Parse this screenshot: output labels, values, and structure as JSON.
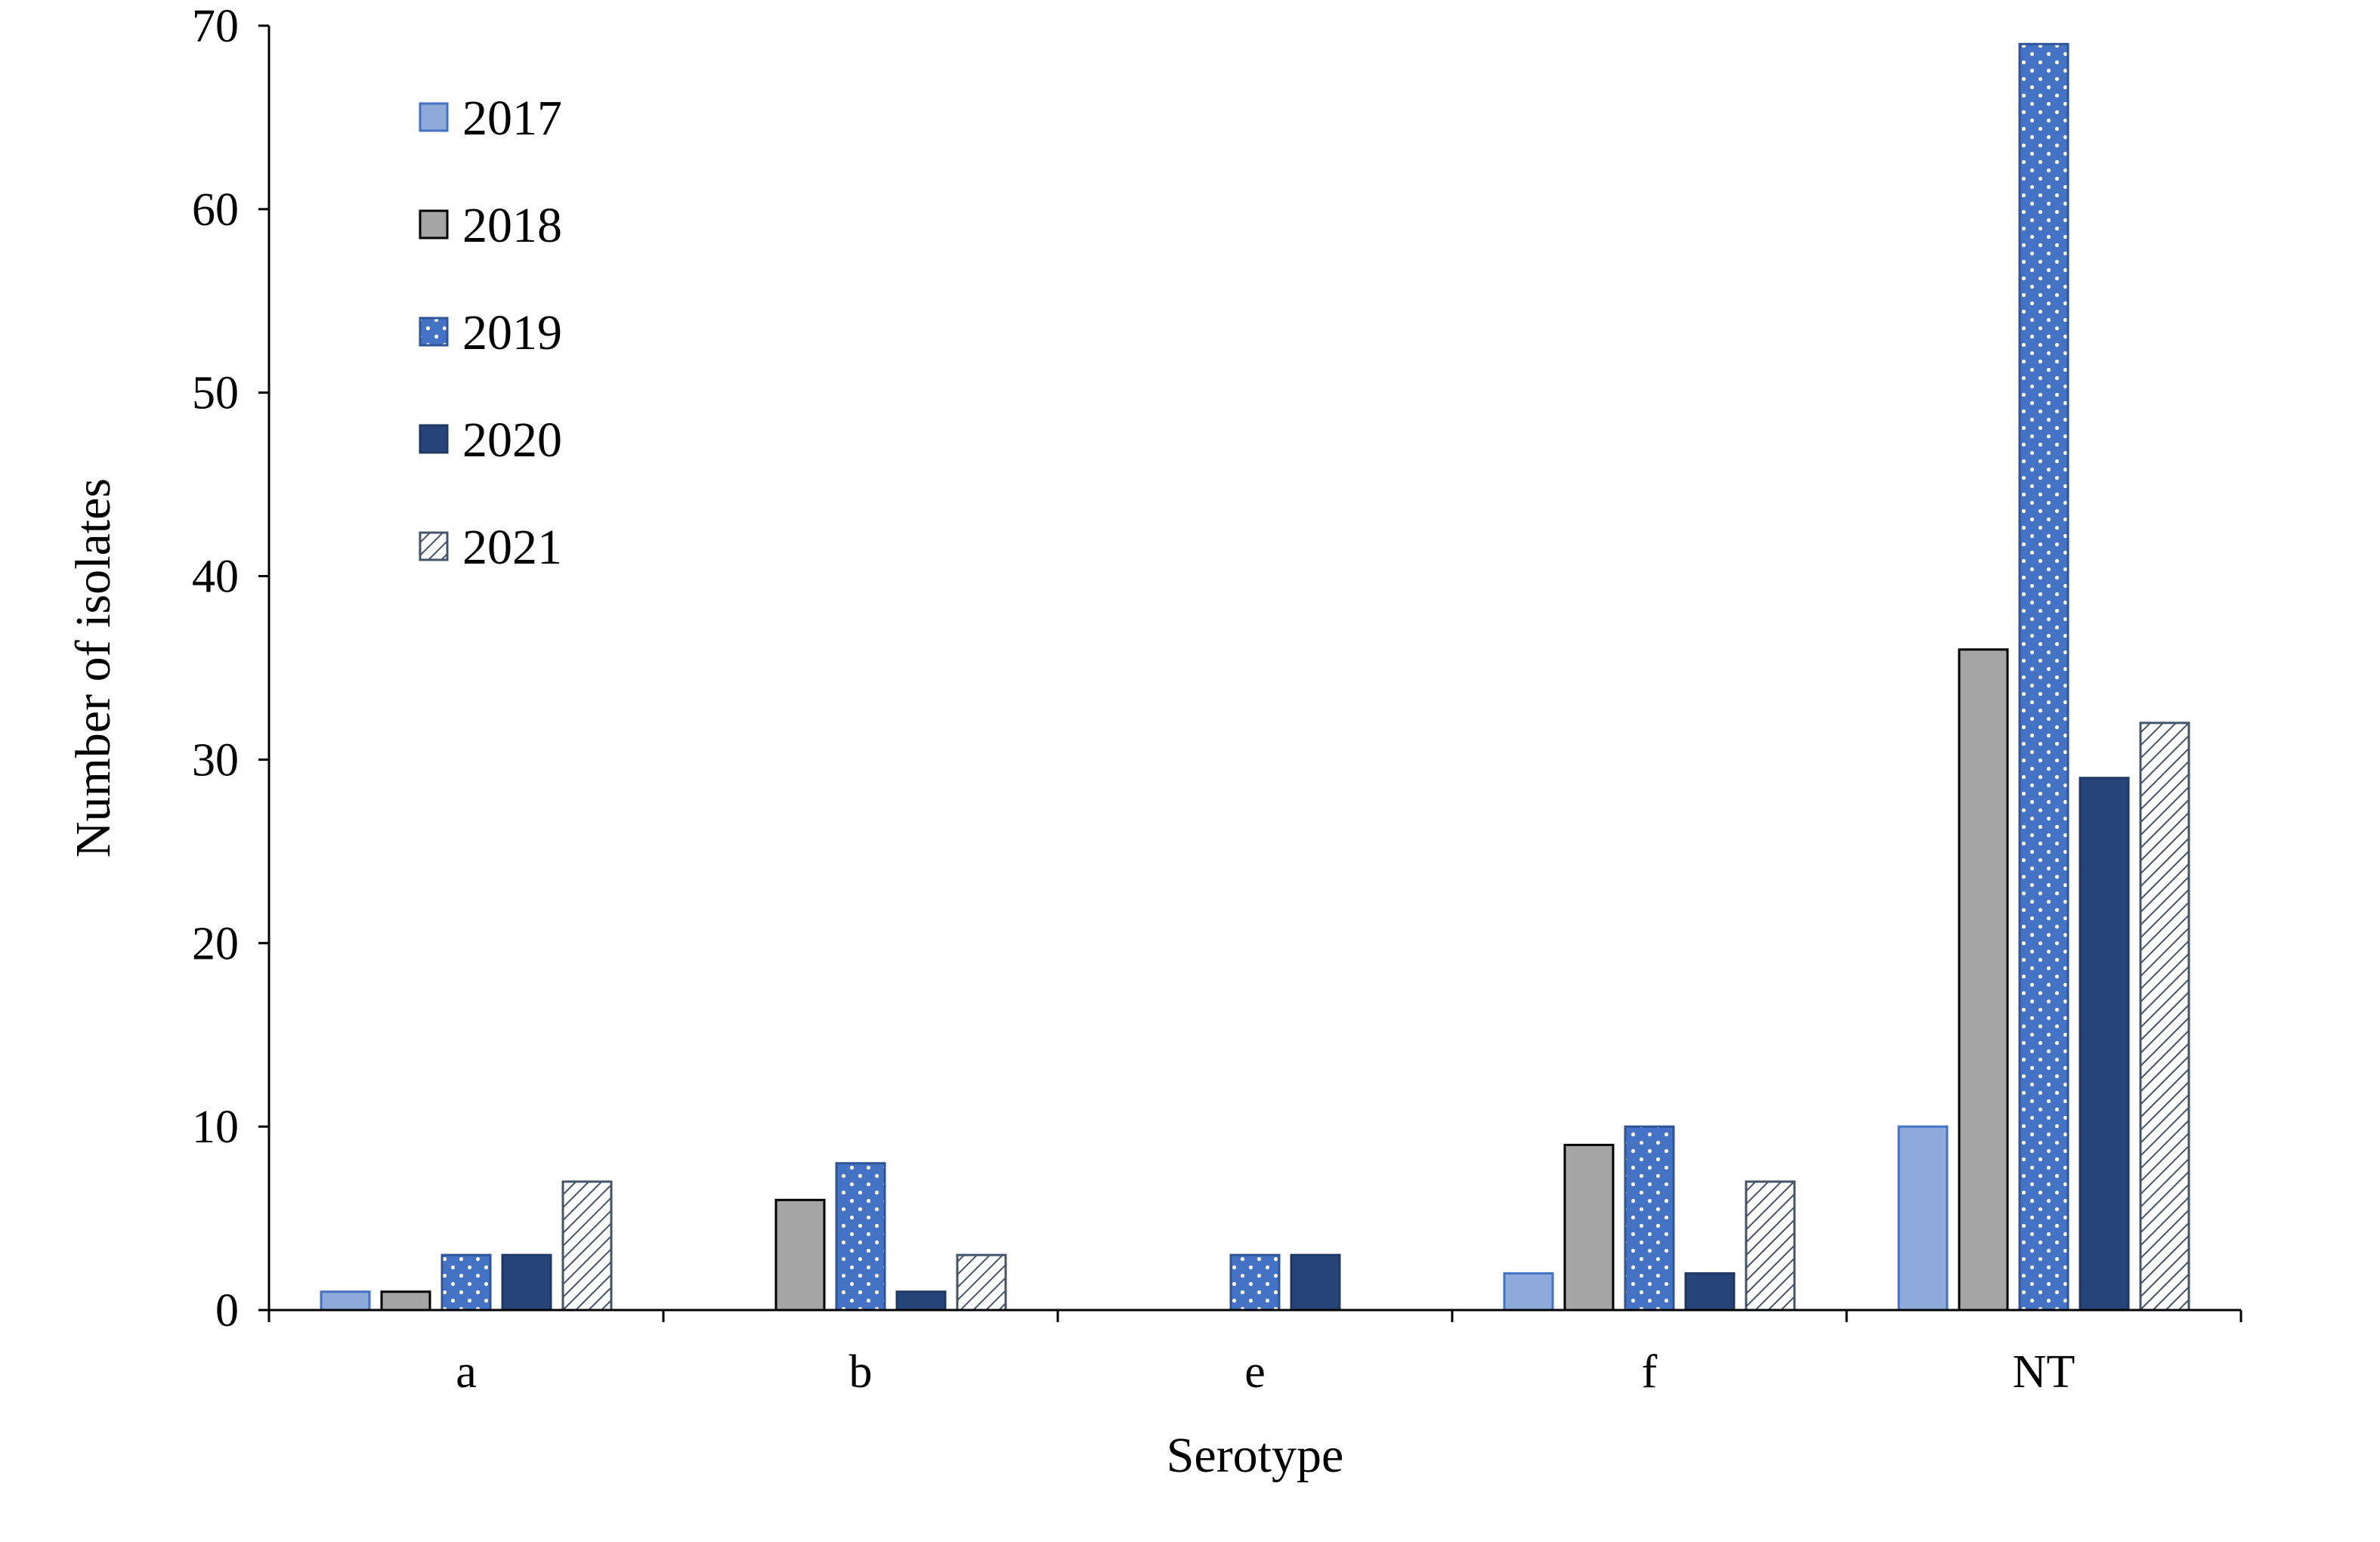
{
  "chart_data": {
    "type": "bar",
    "xlabel": "Serotype",
    "ylabel": "Number of isolates",
    "ylim": [
      0,
      70
    ],
    "yticks": [
      0,
      10,
      20,
      30,
      40,
      50,
      60,
      70
    ],
    "grid": false,
    "legend_position": "top-left",
    "categories": [
      "a",
      "b",
      "e",
      "f",
      "NT"
    ],
    "series": [
      {
        "name": "2017",
        "values": [
          1,
          0,
          0,
          2,
          10
        ],
        "color": "#8eaadb",
        "stroke": "#4472c4",
        "pattern": "solid"
      },
      {
        "name": "2018",
        "values": [
          1,
          6,
          0,
          9,
          36
        ],
        "color": "#a5a5a5",
        "stroke": "#000000",
        "pattern": "solid"
      },
      {
        "name": "2019",
        "values": [
          3,
          8,
          3,
          10,
          69
        ],
        "color": "#4472c4",
        "stroke": "#2f5597",
        "pattern": "dots"
      },
      {
        "name": "2020",
        "values": [
          3,
          1,
          3,
          2,
          29
        ],
        "color": "#264478",
        "stroke": "#1f3864",
        "pattern": "solid"
      },
      {
        "name": "2021",
        "values": [
          7,
          3,
          0,
          7,
          32
        ],
        "color": "#ffffff",
        "stroke": "#44546a",
        "pattern": "hatch"
      }
    ]
  }
}
